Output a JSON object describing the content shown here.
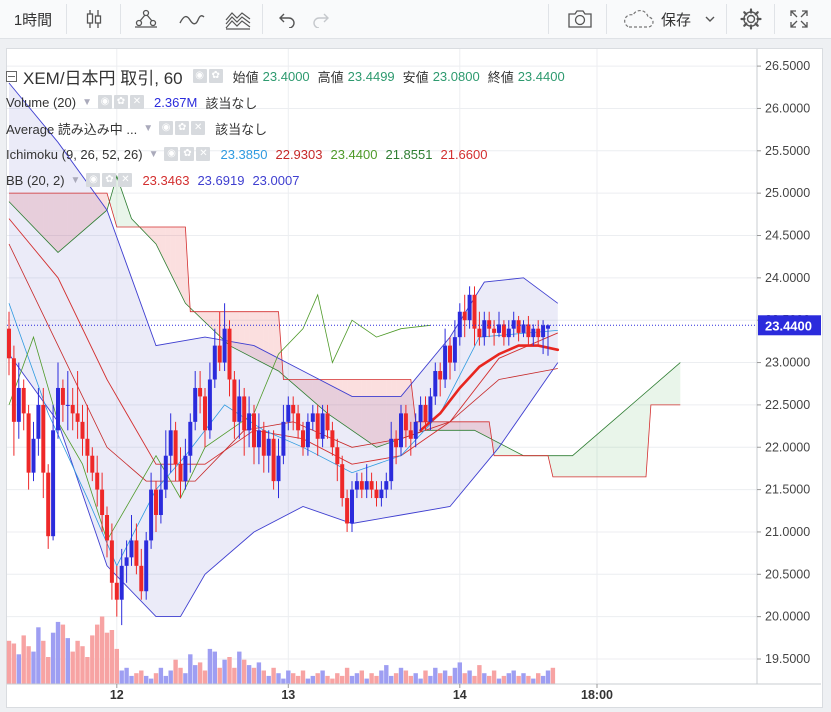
{
  "toolbar": {
    "interval": "1時間",
    "save_label": "保存",
    "icons": [
      "candlestick-icon",
      "indicators-icon",
      "line-drawing-icon",
      "pattern-icon",
      "undo-icon",
      "redo-icon",
      "camera-icon",
      "cloud-icon",
      "gear-icon",
      "fullscreen-icon"
    ]
  },
  "legend": {
    "symbol": "XEM/日本円 取引, 60",
    "ohlc": [
      {
        "label": "始値",
        "value": "23.4000"
      },
      {
        "label": "高値",
        "value": "23.4499"
      },
      {
        "label": "安値",
        "value": "23.0800"
      },
      {
        "label": "終値",
        "value": "23.4400"
      }
    ],
    "volume": {
      "name": "Volume (20)",
      "value": "2.367M",
      "note": "該当なし"
    },
    "average": {
      "name": "Average 読み込み中 ...",
      "note": "該当なし"
    },
    "ichimoku": {
      "name": "Ichimoku (9, 26, 52, 26)",
      "values": [
        "23.3850",
        "22.9303",
        "23.4400",
        "21.8551",
        "21.6600"
      ]
    },
    "bb": {
      "name": "BB (20, 2)",
      "values": [
        "23.3463",
        "23.6919",
        "23.0007"
      ]
    }
  },
  "colors": {
    "up": "#2b2bdc",
    "down": "#ee2828",
    "vol_up": "#9e9ef2",
    "vol_down": "#f7a3a3",
    "ichi_tenkan": "#2e9ae0",
    "ichi_kijun": "#c62828",
    "ichi_chikou": "#4f9a2a",
    "ichi_spanA": "#2e7d32",
    "ichi_spanB": "#d32f2f",
    "bb_mid": "#d32f2f",
    "bb_band": "#3f3fd0",
    "current": "#2b2bdc"
  },
  "price_label": "23.4400",
  "chart_data": {
    "type": "candlestick",
    "symbol": "XEM/日本円",
    "interval": "60",
    "ylim": [
      19.3,
      26.7
    ],
    "y_ticks": [
      "26.5000",
      "26.0000",
      "25.5000",
      "25.0000",
      "24.5000",
      "24.0000",
      "23.5000",
      "23.0000",
      "22.5000",
      "22.0000",
      "21.5000",
      "21.0000",
      "20.5000",
      "20.0000",
      "19.5000"
    ],
    "x_ticks": [
      {
        "label": "12",
        "bar": 22
      },
      {
        "label": "13",
        "bar": 57
      },
      {
        "label": "14",
        "bar": 92
      },
      {
        "label": "18:00",
        "bar": 120
      }
    ],
    "candles": [
      [
        23.4,
        23.05,
        23.6,
        22.85
      ],
      [
        23.05,
        22.3,
        23.2,
        21.9
      ],
      [
        22.3,
        22.7,
        23.0,
        22.1
      ],
      [
        22.7,
        22.4,
        22.8,
        22.2
      ],
      [
        22.4,
        21.7,
        22.5,
        21.5
      ],
      [
        21.7,
        22.1,
        22.3,
        21.6
      ],
      [
        22.1,
        22.5,
        22.7,
        21.9
      ],
      [
        22.5,
        21.7,
        22.7,
        21.4
      ],
      [
        21.7,
        20.95,
        21.8,
        20.8
      ],
      [
        20.95,
        22.2,
        22.5,
        20.9
      ],
      [
        22.2,
        22.7,
        23.0,
        22.1
      ],
      [
        22.7,
        22.5,
        22.8,
        22.3
      ],
      [
        22.5,
        22.5,
        22.9,
        22.2
      ],
      [
        22.5,
        22.4,
        22.7,
        22.2
      ],
      [
        22.4,
        22.3,
        22.9,
        22.1
      ],
      [
        22.3,
        22.1,
        22.5,
        21.9
      ],
      [
        22.1,
        21.9,
        22.5,
        21.7
      ],
      [
        21.9,
        21.7,
        22.0,
        21.6
      ],
      [
        21.7,
        21.5,
        21.9,
        21.3
      ],
      [
        21.5,
        21.2,
        21.7,
        21.0
      ],
      [
        21.2,
        20.9,
        21.3,
        20.7
      ],
      [
        20.9,
        20.4,
        21.1,
        20.2
      ],
      [
        20.4,
        20.2,
        20.6,
        20.0
      ],
      [
        20.2,
        20.6,
        20.8,
        19.9
      ],
      [
        20.6,
        20.7,
        20.9,
        20.4
      ],
      [
        20.7,
        20.9,
        21.2,
        20.6
      ],
      [
        20.9,
        20.6,
        21.1,
        20.5
      ],
      [
        20.6,
        20.3,
        20.8,
        20.2
      ],
      [
        20.3,
        20.9,
        21.0,
        20.2
      ],
      [
        20.9,
        21.5,
        21.7,
        20.8
      ],
      [
        21.5,
        21.2,
        21.6,
        21.0
      ],
      [
        21.2,
        21.5,
        21.8,
        21.1
      ],
      [
        21.5,
        21.9,
        22.2,
        21.4
      ],
      [
        21.9,
        22.2,
        22.4,
        21.7
      ],
      [
        22.2,
        21.8,
        22.3,
        21.6
      ],
      [
        21.8,
        21.6,
        22.0,
        21.4
      ],
      [
        21.6,
        21.9,
        22.1,
        21.5
      ],
      [
        21.9,
        22.3,
        22.4,
        21.7
      ],
      [
        22.3,
        22.7,
        22.9,
        22.2
      ],
      [
        22.7,
        22.6,
        22.9,
        22.4
      ],
      [
        22.6,
        22.2,
        22.7,
        22.0
      ],
      [
        22.2,
        22.8,
        23.0,
        22.1
      ],
      [
        22.8,
        23.2,
        23.4,
        22.7
      ],
      [
        23.2,
        23.0,
        23.6,
        22.9
      ],
      [
        23.0,
        23.4,
        23.7,
        22.9
      ],
      [
        23.4,
        22.8,
        23.5,
        22.6
      ],
      [
        22.8,
        22.3,
        22.9,
        22.1
      ],
      [
        22.3,
        22.6,
        22.8,
        22.1
      ],
      [
        22.6,
        22.2,
        22.7,
        21.9
      ],
      [
        22.2,
        22.4,
        22.6,
        22.0
      ],
      [
        22.4,
        22.0,
        22.5,
        21.8
      ],
      [
        22.0,
        22.2,
        22.4,
        21.8
      ],
      [
        22.2,
        21.9,
        22.3,
        21.7
      ],
      [
        21.9,
        22.1,
        22.2,
        21.7
      ],
      [
        22.1,
        21.6,
        22.2,
        21.5
      ],
      [
        21.6,
        21.9,
        22.1,
        21.4
      ],
      [
        21.9,
        22.3,
        22.5,
        21.8
      ],
      [
        22.3,
        22.5,
        22.6,
        22.2
      ],
      [
        22.5,
        22.4,
        22.6,
        22.2
      ],
      [
        22.4,
        22.2,
        22.5,
        22.1
      ],
      [
        22.2,
        22.0,
        22.3,
        21.9
      ],
      [
        22.0,
        22.3,
        22.4,
        21.9
      ],
      [
        22.3,
        22.4,
        22.5,
        22.2
      ],
      [
        22.4,
        22.1,
        22.5,
        21.9
      ],
      [
        22.1,
        22.4,
        22.5,
        22.0
      ],
      [
        22.4,
        22.2,
        22.5,
        22.1
      ],
      [
        22.2,
        22.0,
        22.3,
        21.9
      ],
      [
        22.0,
        21.8,
        22.1,
        21.6
      ],
      [
        21.8,
        21.4,
        21.9,
        21.3
      ],
      [
        21.4,
        21.1,
        21.5,
        21.0
      ],
      [
        21.1,
        21.5,
        21.6,
        21.0
      ],
      [
        21.5,
        21.6,
        21.7,
        21.4
      ],
      [
        21.6,
        21.5,
        21.7,
        21.4
      ],
      [
        21.5,
        21.6,
        21.8,
        21.4
      ],
      [
        21.6,
        21.5,
        21.7,
        21.4
      ],
      [
        21.5,
        21.4,
        21.6,
        21.3
      ],
      [
        21.4,
        21.5,
        21.6,
        21.3
      ],
      [
        21.5,
        21.6,
        21.7,
        21.4
      ],
      [
        21.6,
        22.1,
        22.3,
        21.5
      ],
      [
        22.1,
        22.0,
        22.2,
        21.8
      ],
      [
        22.0,
        22.4,
        22.5,
        21.9
      ],
      [
        22.4,
        22.2,
        22.5,
        22.0
      ],
      [
        22.2,
        22.1,
        22.3,
        21.9
      ],
      [
        22.1,
        22.3,
        22.4,
        22.0
      ],
      [
        22.3,
        22.5,
        22.6,
        22.2
      ],
      [
        22.5,
        22.3,
        22.6,
        22.2
      ],
      [
        22.3,
        22.6,
        22.7,
        22.2
      ],
      [
        22.6,
        22.9,
        23.0,
        22.5
      ],
      [
        22.9,
        22.8,
        23.0,
        22.6
      ],
      [
        22.8,
        23.2,
        23.4,
        22.7
      ],
      [
        23.2,
        23.0,
        23.3,
        22.8
      ],
      [
        23.0,
        23.3,
        23.5,
        22.9
      ],
      [
        23.3,
        23.6,
        23.7,
        23.2
      ],
      [
        23.6,
        23.5,
        23.8,
        23.3
      ],
      [
        23.5,
        23.8,
        23.9,
        23.4
      ],
      [
        23.8,
        23.4,
        23.9,
        23.2
      ],
      [
        23.4,
        23.3,
        23.6,
        23.2
      ],
      [
        23.3,
        23.5,
        23.6,
        23.2
      ],
      [
        23.5,
        23.4,
        23.6,
        23.3
      ],
      [
        23.4,
        23.35,
        23.5,
        23.2
      ],
      [
        23.35,
        23.45,
        23.6,
        23.3
      ],
      [
        23.45,
        23.3,
        23.5,
        23.2
      ],
      [
        23.3,
        23.4,
        23.5,
        23.2
      ],
      [
        23.4,
        23.5,
        23.6,
        23.3
      ],
      [
        23.5,
        23.35,
        23.55,
        23.25
      ],
      [
        23.35,
        23.45,
        23.5,
        23.3
      ],
      [
        23.45,
        23.3,
        23.55,
        23.2
      ],
      [
        23.3,
        23.4,
        23.45,
        23.2
      ],
      [
        23.4,
        23.3,
        23.5,
        23.2
      ],
      [
        23.3,
        23.44,
        23.5,
        23.1
      ],
      [
        23.4,
        23.44,
        23.45,
        23.08
      ]
    ],
    "volume": [
      1.6,
      1.5,
      1.1,
      1.8,
      1.4,
      1.2,
      2.1,
      1.6,
      1.0,
      1.9,
      2.3,
      2.2,
      1.7,
      1.2,
      1.6,
      1.4,
      1.0,
      1.8,
      2.2,
      2.5,
      1.9,
      2.0,
      1.3,
      0.5,
      0.6,
      0.3,
      0.4,
      0.5,
      0.3,
      0.2,
      0.4,
      0.6,
      0.3,
      0.5,
      0.9,
      0.6,
      0.4,
      1.1,
      0.7,
      0.8,
      0.5,
      1.3,
      1.2,
      0.6,
      0.9,
      1.0,
      0.6,
      1.2,
      0.9,
      0.7,
      0.6,
      0.8,
      0.5,
      0.3,
      0.6,
      0.4,
      0.2,
      0.5,
      0.4,
      0.3,
      0.5,
      0.2,
      0.3,
      0.4,
      0.5,
      0.3,
      0.2,
      0.4,
      0.3,
      0.6,
      0.3,
      0.4,
      0.5,
      0.2,
      0.4,
      0.3,
      0.5,
      0.7,
      0.3,
      0.4,
      0.6,
      0.5,
      0.3,
      0.4,
      0.2,
      0.5,
      0.3,
      0.6,
      0.4,
      0.5,
      0.3,
      0.6,
      0.8,
      0.4,
      0.5,
      0.3,
      0.7,
      0.4,
      0.3,
      0.5,
      0.2,
      0.3,
      0.4,
      0.5,
      0.3,
      0.4,
      0.3,
      0.2,
      0.4,
      0.3,
      0.5,
      0.6
    ],
    "bb": {
      "mid": [
        {
          "i": 0,
          "v": 24.7
        },
        {
          "i": 10,
          "v": 24.0
        },
        {
          "i": 20,
          "v": 22.8
        },
        {
          "i": 30,
          "v": 21.8
        },
        {
          "i": 40,
          "v": 21.8
        },
        {
          "i": 50,
          "v": 22.2
        },
        {
          "i": 60,
          "v": 22.1
        },
        {
          "i": 70,
          "v": 21.8
        },
        {
          "i": 80,
          "v": 21.9
        },
        {
          "i": 90,
          "v": 22.3
        },
        {
          "i": 100,
          "v": 23.05
        },
        {
          "i": 112,
          "v": 23.35
        }
      ],
      "upper": [
        {
          "i": 0,
          "v": 26.3
        },
        {
          "i": 10,
          "v": 25.6
        },
        {
          "i": 20,
          "v": 24.8
        },
        {
          "i": 25,
          "v": 24.0
        },
        {
          "i": 30,
          "v": 23.2
        },
        {
          "i": 40,
          "v": 23.3
        },
        {
          "i": 50,
          "v": 23.2
        },
        {
          "i": 60,
          "v": 22.9
        },
        {
          "i": 70,
          "v": 22.6
        },
        {
          "i": 80,
          "v": 22.6
        },
        {
          "i": 90,
          "v": 23.3
        },
        {
          "i": 97,
          "v": 23.95
        },
        {
          "i": 105,
          "v": 24.0
        },
        {
          "i": 112,
          "v": 23.7
        }
      ],
      "lower": [
        {
          "i": 0,
          "v": 23.1
        },
        {
          "i": 10,
          "v": 22.3
        },
        {
          "i": 20,
          "v": 20.6
        },
        {
          "i": 30,
          "v": 20.0
        },
        {
          "i": 35,
          "v": 20.0
        },
        {
          "i": 40,
          "v": 20.5
        },
        {
          "i": 50,
          "v": 21.0
        },
        {
          "i": 60,
          "v": 21.3
        },
        {
          "i": 70,
          "v": 21.1
        },
        {
          "i": 80,
          "v": 21.2
        },
        {
          "i": 90,
          "v": 21.3
        },
        {
          "i": 100,
          "v": 22.0
        },
        {
          "i": 112,
          "v": 23.0
        }
      ]
    },
    "ichimoku": {
      "tenkan": [
        {
          "i": 0,
          "v": 23.7
        },
        {
          "i": 8,
          "v": 22.4
        },
        {
          "i": 16,
          "v": 21.4
        },
        {
          "i": 22,
          "v": 20.6
        },
        {
          "i": 30,
          "v": 21.5
        },
        {
          "i": 36,
          "v": 21.9
        },
        {
          "i": 44,
          "v": 22.5
        },
        {
          "i": 52,
          "v": 22.2
        },
        {
          "i": 60,
          "v": 22.0
        },
        {
          "i": 70,
          "v": 21.7
        },
        {
          "i": 80,
          "v": 21.9
        },
        {
          "i": 88,
          "v": 22.4
        },
        {
          "i": 96,
          "v": 23.3
        },
        {
          "i": 112,
          "v": 23.38
        }
      ],
      "kijun": [
        {
          "i": 0,
          "v": 24.4
        },
        {
          "i": 10,
          "v": 23.2
        },
        {
          "i": 20,
          "v": 22.0
        },
        {
          "i": 28,
          "v": 21.6
        },
        {
          "i": 38,
          "v": 21.6
        },
        {
          "i": 48,
          "v": 22.2
        },
        {
          "i": 58,
          "v": 22.3
        },
        {
          "i": 70,
          "v": 22.0
        },
        {
          "i": 80,
          "v": 22.1
        },
        {
          "i": 90,
          "v": 22.3
        },
        {
          "i": 100,
          "v": 22.8
        },
        {
          "i": 112,
          "v": 22.93
        }
      ],
      "chikou": [
        {
          "i": 0,
          "v": 22.5
        },
        {
          "i": 5,
          "v": 23.3
        },
        {
          "i": 10,
          "v": 22.3
        },
        {
          "i": 15,
          "v": 21.8
        },
        {
          "i": 20,
          "v": 20.9
        },
        {
          "i": 25,
          "v": 21.4
        },
        {
          "i": 30,
          "v": 21.9
        },
        {
          "i": 35,
          "v": 21.4
        },
        {
          "i": 40,
          "v": 22.0
        },
        {
          "i": 45,
          "v": 22.2
        },
        {
          "i": 50,
          "v": 22.4
        },
        {
          "i": 55,
          "v": 23.1
        },
        {
          "i": 60,
          "v": 23.4
        },
        {
          "i": 63,
          "v": 23.8
        },
        {
          "i": 66,
          "v": 23.0
        },
        {
          "i": 70,
          "v": 23.5
        },
        {
          "i": 75,
          "v": 23.3
        },
        {
          "i": 80,
          "v": 23.4
        },
        {
          "i": 86,
          "v": 23.44
        }
      ],
      "spanA": [
        {
          "i": 0,
          "v": 24.9
        },
        {
          "i": 10,
          "v": 24.3
        },
        {
          "i": 20,
          "v": 24.8
        },
        {
          "i": 22,
          "v": 25.2
        },
        {
          "i": 25,
          "v": 24.7
        },
        {
          "i": 30,
          "v": 24.4
        },
        {
          "i": 36,
          "v": 23.7
        },
        {
          "i": 45,
          "v": 23.2
        },
        {
          "i": 55,
          "v": 22.9
        },
        {
          "i": 65,
          "v": 22.4
        },
        {
          "i": 75,
          "v": 22.0
        },
        {
          "i": 85,
          "v": 22.2
        },
        {
          "i": 95,
          "v": 22.2
        },
        {
          "i": 105,
          "v": 21.9
        },
        {
          "i": 115,
          "v": 21.9
        },
        {
          "i": 125,
          "v": 22.4
        },
        {
          "i": 137,
          "v": 23.0
        }
      ],
      "spanB": [
        {
          "i": 0,
          "v": 25.0
        },
        {
          "i": 20,
          "v": 25.0
        },
        {
          "i": 22,
          "v": 24.6
        },
        {
          "i": 36,
          "v": 24.6
        },
        {
          "i": 37,
          "v": 23.6
        },
        {
          "i": 55,
          "v": 23.6
        },
        {
          "i": 56,
          "v": 22.8
        },
        {
          "i": 82,
          "v": 22.8
        },
        {
          "i": 83,
          "v": 22.3
        },
        {
          "i": 98,
          "v": 22.3
        },
        {
          "i": 99,
          "v": 21.9
        },
        {
          "i": 110,
          "v": 21.9
        },
        {
          "i": 111,
          "v": 21.65
        },
        {
          "i": 130,
          "v": 21.65
        },
        {
          "i": 131,
          "v": 22.5
        },
        {
          "i": 137,
          "v": 22.5
        }
      ]
    },
    "average_line": [
      {
        "i": 84,
        "v": 22.2
      },
      {
        "i": 88,
        "v": 22.4
      },
      {
        "i": 92,
        "v": 22.7
      },
      {
        "i": 96,
        "v": 22.95
      },
      {
        "i": 100,
        "v": 23.1
      },
      {
        "i": 104,
        "v": 23.2
      },
      {
        "i": 108,
        "v": 23.2
      },
      {
        "i": 112,
        "v": 23.15
      }
    ]
  }
}
